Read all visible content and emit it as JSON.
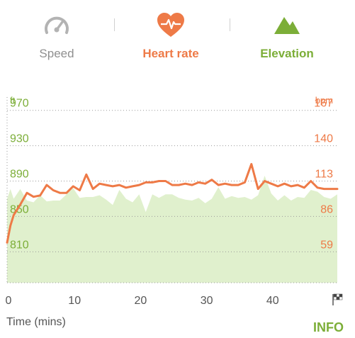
{
  "tabs": {
    "speed": {
      "label": "Speed",
      "icon": "speedometer-icon"
    },
    "heart_rate": {
      "label": "Heart rate",
      "icon": "heart-pulse-icon"
    },
    "elevation": {
      "label": "Elevation",
      "icon": "mountain-icon"
    }
  },
  "colors": {
    "elevation": "#7cae38",
    "elevation_fill": "#e0f0cd",
    "heart_rate": "#ee7a47",
    "speed": "#8f8f8f"
  },
  "info_button": {
    "label": "INFO"
  },
  "chart_data": {
    "type": "area",
    "xlabel": "Time (mins)",
    "x_ticks": [
      "0",
      "10",
      "20",
      "30",
      "40"
    ],
    "x_end_marker": "finish-flag-icon",
    "xlim": [
      0,
      50
    ],
    "left_axis": {
      "unit": "ft",
      "ticks": [
        "970",
        "930",
        "890",
        "850",
        "810"
      ],
      "ylim": [
        775,
        985
      ]
    },
    "right_axis": {
      "unit": "bpm",
      "ticks": [
        "167",
        "140",
        "113",
        "86",
        "59"
      ],
      "ylim": [
        35.4,
        177.1
      ]
    },
    "grid": true,
    "series": [
      {
        "name": "Elevation",
        "axis": "left",
        "x": [
          0,
          0.5,
          1,
          2,
          3,
          4,
          5,
          6,
          7,
          8,
          9,
          10,
          11,
          12,
          13,
          14,
          15,
          16,
          17,
          18,
          19,
          20,
          21,
          22,
          23,
          24,
          25,
          26,
          27,
          28,
          29,
          30,
          31,
          32,
          33,
          34,
          35,
          36,
          37,
          38,
          39,
          40,
          41,
          42,
          43,
          44,
          45,
          46,
          47,
          48,
          49,
          50
        ],
        "y": [
          870,
          881,
          870,
          881,
          868,
          866,
          874,
          867,
          868,
          868,
          875,
          882,
          871,
          872,
          872,
          874,
          869,
          863,
          880,
          870,
          866,
          875,
          855,
          875,
          871,
          875,
          875,
          871,
          869,
          868,
          871,
          865,
          870,
          883,
          870,
          873,
          871,
          872,
          869,
          874,
          896,
          876,
          868,
          874,
          868,
          872,
          871,
          880,
          878,
          872,
          870,
          875
        ]
      },
      {
        "name": "Heart rate",
        "axis": "right",
        "x": [
          0,
          0.5,
          1,
          2,
          3,
          4,
          5,
          6,
          7,
          8,
          9,
          10,
          11,
          12,
          13,
          14,
          15,
          16,
          17,
          18,
          19,
          20,
          21,
          22,
          23,
          24,
          25,
          26,
          27,
          28,
          29,
          30,
          31,
          32,
          33,
          34,
          35,
          36,
          37,
          38,
          39,
          40,
          41,
          42,
          43,
          44,
          45,
          46,
          47,
          48,
          49,
          50
        ],
        "y": [
          66,
          79,
          87,
          95,
          104,
          101,
          102,
          110,
          106,
          104,
          104,
          109,
          106,
          118,
          107,
          111,
          110,
          109,
          110,
          108,
          109,
          110,
          112,
          112,
          113,
          113,
          110,
          110,
          111,
          110,
          112,
          111,
          114,
          110,
          111,
          110,
          110,
          112,
          126,
          107,
          113,
          111,
          109,
          111,
          109,
          110,
          108,
          113,
          108,
          107,
          107,
          107
        ]
      }
    ]
  }
}
